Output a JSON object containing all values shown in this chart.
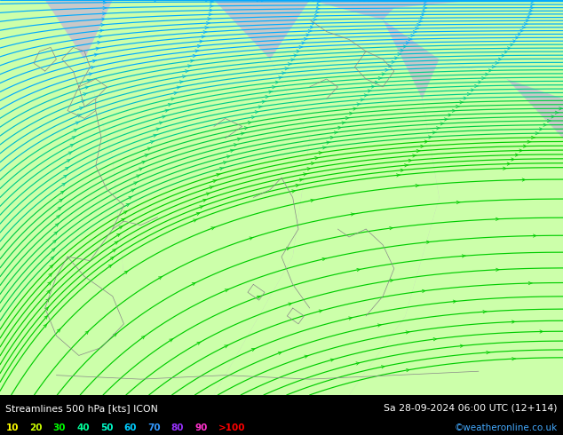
{
  "title_left": "Streamlines 500 hPa [kts] ICON",
  "title_right": "Sa 28-09-2024 06:00 UTC (12+114)",
  "credit": "©weatheronline.co.uk",
  "legend_values": [
    "10",
    "20",
    "30",
    "40",
    "50",
    "60",
    "70",
    "80",
    "90",
    ">100"
  ],
  "legend_colors": [
    "#ffff00",
    "#ccff00",
    "#00ff00",
    "#00ff99",
    "#00ffcc",
    "#00ccff",
    "#3399ff",
    "#9933ff",
    "#ff33cc",
    "#ff0000"
  ],
  "bg_color": "#d0d0d0",
  "green_fill": "#ccffaa",
  "bottom_bg": "#000000",
  "text_color": "#ffffff",
  "credit_color": "#44aaff",
  "figsize": [
    6.34,
    4.9
  ],
  "dpi": 100
}
